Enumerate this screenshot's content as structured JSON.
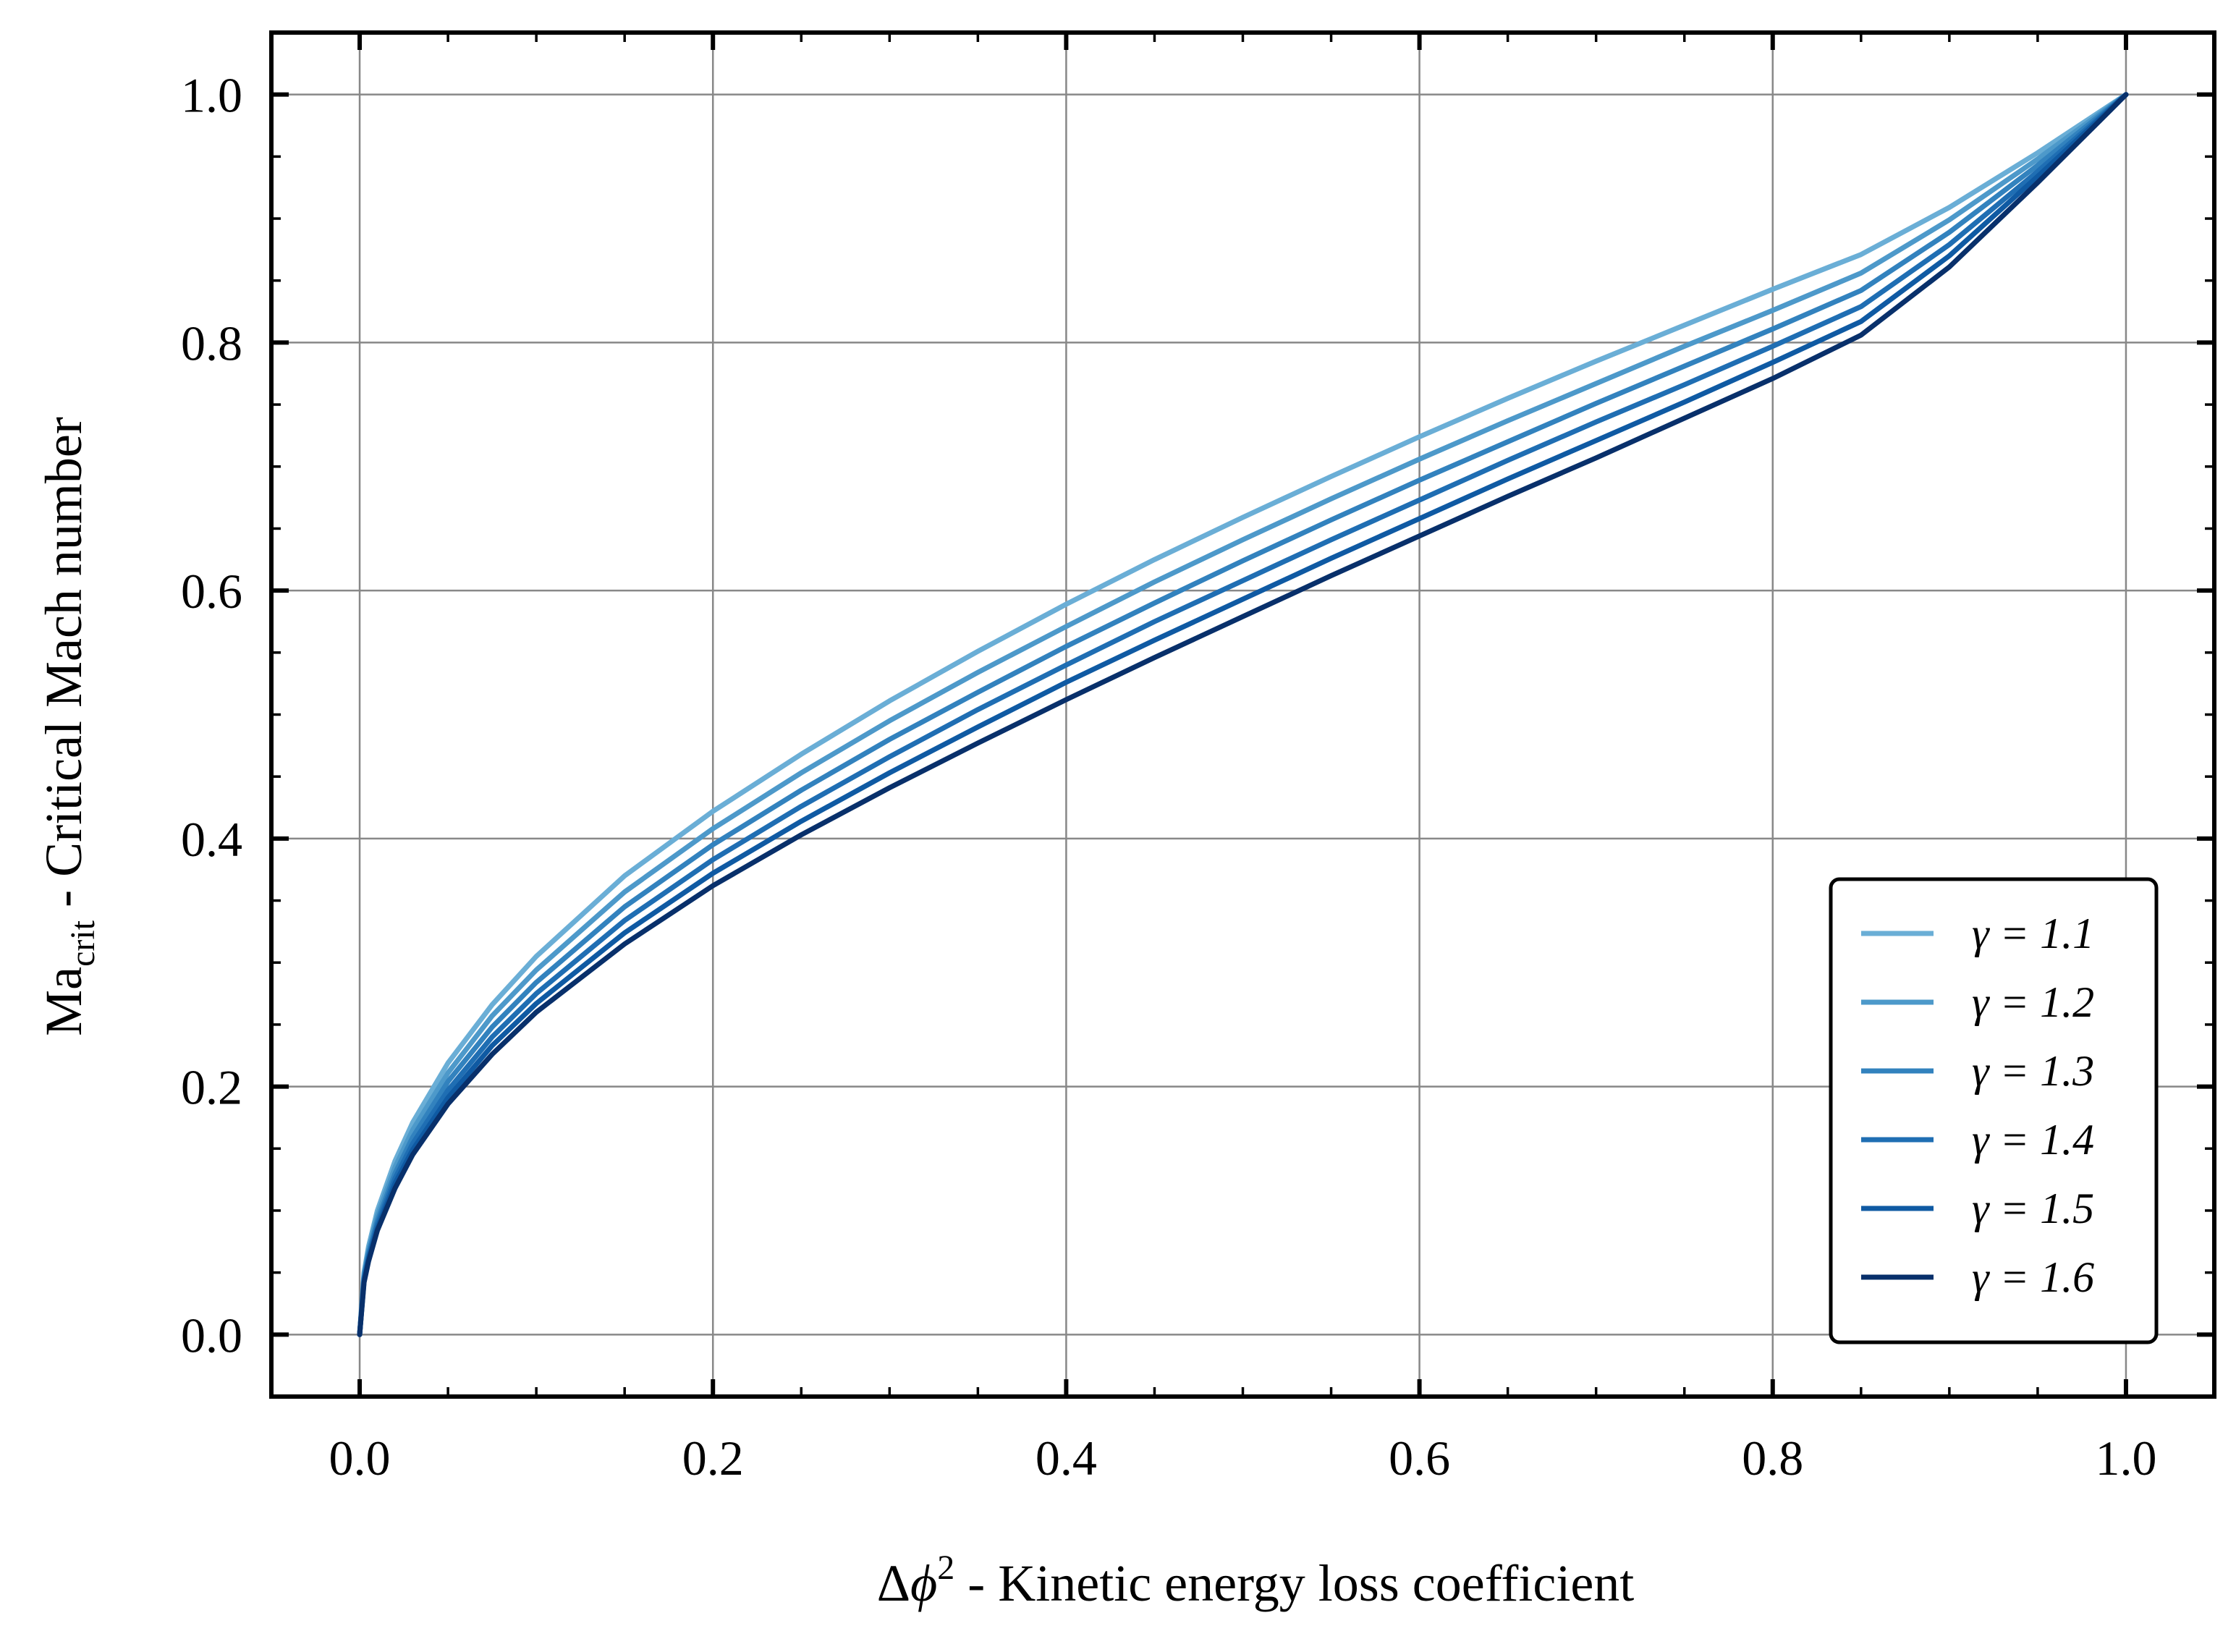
{
  "chart_data": {
    "type": "line",
    "xlabel": "Δϕ² - Kinetic energy loss coefficient",
    "xlabel_parts": {
      "delta": "Δ",
      "phi": "ϕ",
      "sup": "2",
      "rest": " - Kinetic energy loss coefficient"
    },
    "ylabel": "Ma_crit - Critical Mach number",
    "ylabel_parts": {
      "ma": "Ma",
      "sub": "crit",
      "rest": " - Critical Mach number"
    },
    "xlim": [
      -0.05,
      1.05
    ],
    "ylim": [
      -0.05,
      1.05
    ],
    "xticks": [
      "0.0",
      "0.2",
      "0.4",
      "0.6",
      "0.8",
      "1.0"
    ],
    "yticks": [
      "0.0",
      "0.2",
      "0.4",
      "0.6",
      "0.8",
      "1.0"
    ],
    "xtick_values": [
      0,
      0.2,
      0.4,
      0.6,
      0.8,
      1.0
    ],
    "ytick_values": [
      0,
      0.2,
      0.4,
      0.6,
      0.8,
      1.0
    ],
    "grid": true,
    "legend_position": "bottom-right",
    "x": [
      0,
      0.0025,
      0.005,
      0.01,
      0.02,
      0.03,
      0.05,
      0.075,
      0.1,
      0.15,
      0.2,
      0.25,
      0.3,
      0.35,
      0.4,
      0.45,
      0.5,
      0.55,
      0.6,
      0.65,
      0.7,
      0.75,
      0.8,
      0.85,
      0.9,
      0.95,
      1.0
    ],
    "series": [
      {
        "name": "γ = 1.1",
        "gamma": "1.1",
        "color": "#6aaed6",
        "values": [
          0,
          0.05,
          0.071,
          0.1,
          0.14,
          0.171,
          0.219,
          0.266,
          0.305,
          0.37,
          0.422,
          0.468,
          0.511,
          0.551,
          0.589,
          0.625,
          0.659,
          0.692,
          0.724,
          0.755,
          0.785,
          0.814,
          0.843,
          0.871,
          0.909,
          0.953,
          1.0
        ]
      },
      {
        "name": "γ = 1.2",
        "gamma": "1.2",
        "color": "#4d99ca",
        "values": [
          0,
          0.048,
          0.068,
          0.096,
          0.135,
          0.165,
          0.211,
          0.257,
          0.294,
          0.357,
          0.408,
          0.453,
          0.495,
          0.534,
          0.571,
          0.607,
          0.641,
          0.674,
          0.706,
          0.737,
          0.767,
          0.797,
          0.826,
          0.856,
          0.899,
          0.948,
          1.0
        ]
      },
      {
        "name": "γ = 1.3",
        "gamma": "1.3",
        "color": "#3282be",
        "values": [
          0,
          0.046,
          0.065,
          0.092,
          0.13,
          0.159,
          0.204,
          0.248,
          0.284,
          0.345,
          0.395,
          0.439,
          0.48,
          0.518,
          0.555,
          0.59,
          0.624,
          0.657,
          0.689,
          0.72,
          0.751,
          0.781,
          0.811,
          0.842,
          0.889,
          0.943,
          1.0
        ]
      },
      {
        "name": "γ = 1.4",
        "gamma": "1.4",
        "color": "#1f6eb3",
        "values": [
          0,
          0.045,
          0.063,
          0.089,
          0.126,
          0.154,
          0.197,
          0.24,
          0.275,
          0.334,
          0.383,
          0.426,
          0.466,
          0.504,
          0.54,
          0.575,
          0.608,
          0.641,
          0.673,
          0.705,
          0.736,
          0.766,
          0.797,
          0.829,
          0.879,
          0.938,
          1.0
        ]
      },
      {
        "name": "γ = 1.5",
        "gamma": "1.5",
        "color": "#0f5aa3",
        "values": [
          0,
          0.043,
          0.061,
          0.086,
          0.122,
          0.149,
          0.191,
          0.233,
          0.267,
          0.324,
          0.372,
          0.414,
          0.453,
          0.49,
          0.526,
          0.56,
          0.593,
          0.626,
          0.658,
          0.69,
          0.721,
          0.752,
          0.784,
          0.817,
          0.87,
          0.934,
          1.0
        ]
      },
      {
        "name": "γ = 1.6",
        "gamma": "1.6",
        "color": "#08306b",
        "values": [
          0,
          0.042,
          0.059,
          0.084,
          0.118,
          0.145,
          0.186,
          0.226,
          0.26,
          0.315,
          0.362,
          0.403,
          0.441,
          0.477,
          0.512,
          0.546,
          0.579,
          0.612,
          0.644,
          0.676,
          0.707,
          0.739,
          0.771,
          0.806,
          0.861,
          0.929,
          1.0
        ]
      }
    ]
  }
}
